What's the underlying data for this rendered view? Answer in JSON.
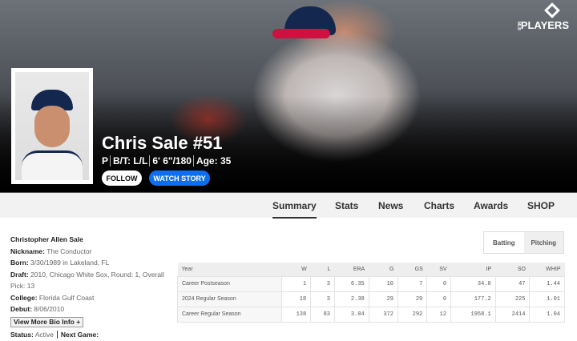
{
  "brand": {
    "logo_text": "PLAYERS",
    "logo_prefix": "MLB"
  },
  "player": {
    "name": "Chris Sale #51",
    "position": "P",
    "bats_throws": "B/T: L/L",
    "height_weight": "6' 6\"/180",
    "age": "Age: 35"
  },
  "buttons": {
    "follow": "FOLLOW",
    "watch": "WATCH STORY"
  },
  "tabs": [
    {
      "label": "Summary",
      "active": true
    },
    {
      "label": "Stats"
    },
    {
      "label": "News"
    },
    {
      "label": "Charts"
    },
    {
      "label": "Awards"
    },
    {
      "label": "SHOP"
    }
  ],
  "bio": {
    "full_name": "Christopher Allen Sale",
    "nickname_label": "Nickname:",
    "nickname": "The Conductor",
    "born_label": "Born:",
    "born": "3/30/1989 in Lakeland, FL",
    "draft_label": "Draft:",
    "draft": "2010, Chicago White Sox, Round: 1, Overall Pick: 13",
    "college_label": "College:",
    "college": "Florida Gulf Coast",
    "debut_label": "Debut:",
    "debut": "8/06/2010",
    "more_button": "View More Bio Info +",
    "status_label": "Status:",
    "status": "Active",
    "next_game_label": "Next Game:"
  },
  "stat_toggle": {
    "batting": "Batting",
    "pitching": "Pitching",
    "active": "Pitching"
  },
  "stats": {
    "headers": [
      "Year",
      "W",
      "L",
      "ERA",
      "G",
      "GS",
      "SV",
      "IP",
      "SO",
      "WHIP"
    ],
    "rows": [
      [
        "Career Postseason",
        "1",
        "3",
        "6.35",
        "10",
        "7",
        "0",
        "34.0",
        "47",
        "1.44"
      ],
      [
        "2024 Regular Season",
        "18",
        "3",
        "2.38",
        "29",
        "29",
        "0",
        "177.2",
        "225",
        "1.01"
      ],
      [
        "Career Regular Season",
        "138",
        "83",
        "3.04",
        "372",
        "292",
        "12",
        "1958.1",
        "2414",
        "1.04"
      ]
    ]
  },
  "colors": {
    "watch_button": "#0d6ef3",
    "braves_navy": "#13274f",
    "braves_red": "#ce1141"
  }
}
